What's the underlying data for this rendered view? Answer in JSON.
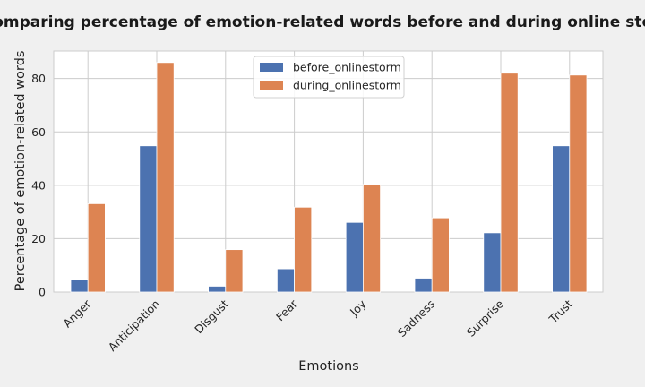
{
  "chart_data": {
    "type": "bar",
    "title": "Comparing percentage of emotion-related words before and during online storm",
    "xlabel": "Emotions",
    "ylabel": "Percentage of emotion-related words",
    "categories": [
      "Anger",
      "Anticipation",
      "Disgust",
      "Fear",
      "Joy",
      "Sadness",
      "Surprise",
      "Trust"
    ],
    "series": [
      {
        "name": "before_onlinestorm",
        "color": "#4c72b0",
        "values": [
          4.8,
          54.8,
          2.2,
          8.7,
          26.1,
          5.2,
          22.2,
          54.8
        ]
      },
      {
        "name": "during_onlinestorm",
        "color": "#dd8452",
        "values": [
          33.1,
          86.0,
          15.9,
          31.8,
          40.3,
          27.8,
          82.0,
          81.3
        ]
      }
    ],
    "yticks": [
      0,
      20,
      40,
      60,
      80
    ],
    "ylim": [
      0,
      90.3
    ],
    "grid": true,
    "legend_position": "top-center"
  }
}
